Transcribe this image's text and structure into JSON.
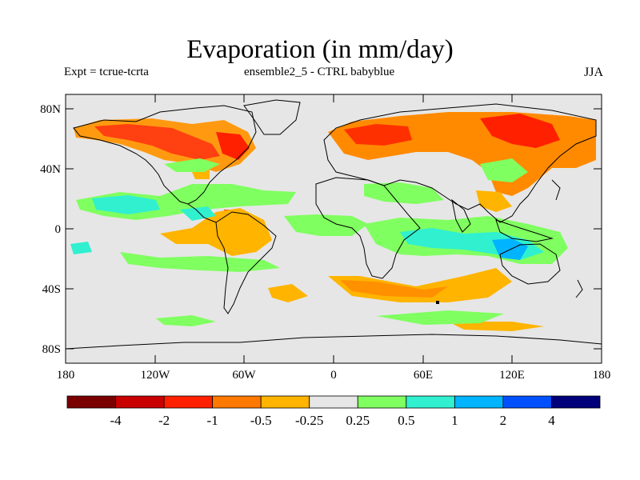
{
  "title": "Evaporation (in mm/day)",
  "subtitle_left": "Expt = tcrue-tcrta",
  "subtitle_center": "ensemble2_5 - CTRL babyblue",
  "subtitle_right": "JJA",
  "axes": {
    "x_ticks": [
      "180",
      "120W",
      "60W",
      "0",
      "60E",
      "120E",
      "180"
    ],
    "y_ticks": [
      "80N",
      "40N",
      "0",
      "40S",
      "80S"
    ],
    "lon_range": [
      -180,
      180
    ],
    "lat_range": [
      -90,
      90
    ]
  },
  "colors": {
    "background_field": "#e6e6e6",
    "levels": [
      "#7a0000",
      "#c80000",
      "#ff2000",
      "#ff7800",
      "#ffb400",
      "#e6e6e6",
      "#80ff60",
      "#30f0d0",
      "#00b4ff",
      "#0050ff",
      "#00007a"
    ]
  },
  "colorbar": {
    "labels": [
      "-4",
      "-2",
      "-1",
      "-0.5",
      "-0.25",
      "0.25",
      "0.5",
      "1",
      "2",
      "4"
    ]
  },
  "chart_data": {
    "type": "heatmap",
    "variable": "Evaporation difference (mm/day)",
    "season": "JJA",
    "contour_levels": [
      -4,
      -2,
      -1,
      -0.5,
      -0.25,
      0.25,
      0.5,
      1,
      2,
      4
    ],
    "regions": [
      {
        "lon": [
          -150,
          -60
        ],
        "lat": [
          45,
          70
        ],
        "level": "-1"
      },
      {
        "lon": [
          -110,
          -75
        ],
        "lat": [
          48,
          62
        ],
        "level": "-2"
      },
      {
        "lon": [
          0,
          150
        ],
        "lat": [
          40,
          75
        ],
        "level": "-1"
      },
      {
        "lon": [
          90,
          135
        ],
        "lat": [
          55,
          70
        ],
        "level": "-2"
      },
      {
        "lon": [
          -75,
          -60
        ],
        "lat": [
          -15,
          10
        ],
        "level": "-1"
      },
      {
        "lon": [
          -90,
          -30
        ],
        "lat": [
          -10,
          0
        ],
        "level": "-0.5"
      },
      {
        "lon": [
          20,
          100
        ],
        "lat": [
          -48,
          -35
        ],
        "level": "-0.5"
      },
      {
        "lon": [
          -60,
          -30
        ],
        "lat": [
          -45,
          -35
        ],
        "level": "-0.5"
      },
      {
        "lon": [
          -130,
          -60
        ],
        "lat": [
          5,
          25
        ],
        "level": "0.5"
      },
      {
        "lon": [
          50,
          140
        ],
        "lat": [
          -20,
          5
        ],
        "level": "0.5"
      },
      {
        "lon": [
          110,
          130
        ],
        "lat": [
          -25,
          -10
        ],
        "level": "1"
      },
      {
        "lon": [
          -160,
          -80
        ],
        "lat": [
          -40,
          -25
        ],
        "level": "0.5"
      },
      {
        "lon": [
          20,
          60
        ],
        "lat": [
          20,
          40
        ],
        "level": "0.25"
      }
    ]
  }
}
